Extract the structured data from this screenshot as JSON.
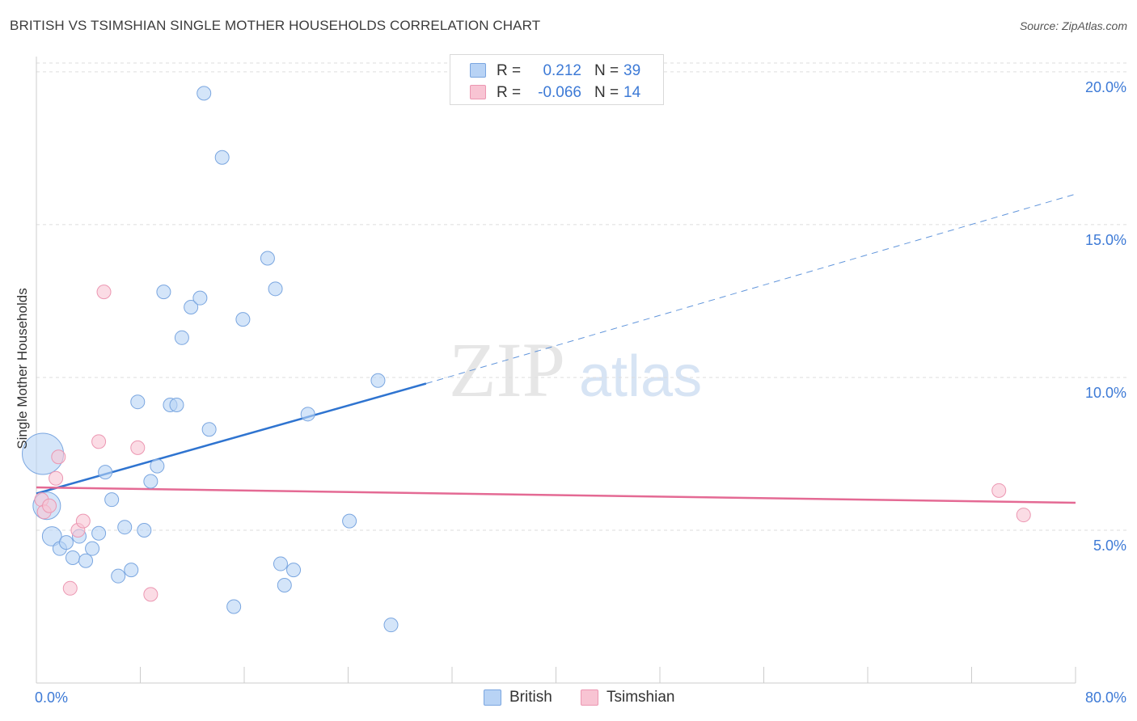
{
  "header": {
    "title": "BRITISH VS TSIMSHIAN SINGLE MOTHER HOUSEHOLDS CORRELATION CHART",
    "source": "Source: ZipAtlas.com"
  },
  "watermark": {
    "zip": "ZIP",
    "atlas": "atlas"
  },
  "colors": {
    "british_fill": "#b8d3f5",
    "british_stroke": "#7aa6e0",
    "british_line": "#2f74d0",
    "tsimshian_fill": "#f8c4d3",
    "tsimshian_stroke": "#ec97b2",
    "tsimshian_line": "#e46a94",
    "tick_label": "#3d7ad6",
    "grid": "#dddddd"
  },
  "legend": {
    "rows": [
      {
        "series": "British",
        "r_label": "R =",
        "r_value": "0.212",
        "n_label": "N =",
        "n_value": "39"
      },
      {
        "series": "Tsimshian",
        "r_label": "R =",
        "r_value": "-0.066",
        "n_label": "N =",
        "n_value": "14"
      }
    ],
    "bottom": [
      "British",
      "Tsimshian"
    ]
  },
  "chart_data": {
    "type": "scatter",
    "title": "BRITISH VS TSIMSHIAN SINGLE MOTHER HOUSEHOLDS CORRELATION CHART",
    "xlabel": "",
    "ylabel": "Single Mother Households",
    "xlim": [
      0,
      80
    ],
    "ylim": [
      0,
      20.5
    ],
    "x_tick_labels": [
      "0.0%",
      "80.0%"
    ],
    "y_ticks": [
      5,
      10,
      15,
      20
    ],
    "y_tick_labels": [
      "5.0%",
      "10.0%",
      "15.0%",
      "20.0%"
    ],
    "series": [
      {
        "name": "British",
        "r": 0.212,
        "n": 39,
        "trend": {
          "x0": 0,
          "y0": 6.2,
          "x1": 30,
          "y1": 9.8,
          "dash_to_x": 80,
          "dash_to_y": 16.0
        },
        "points": [
          {
            "x": 0.5,
            "y": 7.5,
            "s": 3
          },
          {
            "x": 0.8,
            "y": 5.8,
            "s": 2
          },
          {
            "x": 1.2,
            "y": 4.8,
            "s": 1.4
          },
          {
            "x": 1.8,
            "y": 4.4,
            "s": 1
          },
          {
            "x": 2.3,
            "y": 4.6,
            "s": 1
          },
          {
            "x": 2.8,
            "y": 4.1,
            "s": 1
          },
          {
            "x": 3.3,
            "y": 4.8,
            "s": 1
          },
          {
            "x": 3.8,
            "y": 4.0,
            "s": 1
          },
          {
            "x": 4.3,
            "y": 4.4,
            "s": 1
          },
          {
            "x": 4.8,
            "y": 4.9,
            "s": 1
          },
          {
            "x": 5.3,
            "y": 6.9,
            "s": 1
          },
          {
            "x": 5.8,
            "y": 6.0,
            "s": 1
          },
          {
            "x": 6.3,
            "y": 3.5,
            "s": 1
          },
          {
            "x": 6.8,
            "y": 5.1,
            "s": 1
          },
          {
            "x": 7.3,
            "y": 3.7,
            "s": 1
          },
          {
            "x": 7.8,
            "y": 9.2,
            "s": 1
          },
          {
            "x": 8.3,
            "y": 5.0,
            "s": 1
          },
          {
            "x": 8.8,
            "y": 6.6,
            "s": 1
          },
          {
            "x": 9.3,
            "y": 7.1,
            "s": 1
          },
          {
            "x": 9.8,
            "y": 12.8,
            "s": 1
          },
          {
            "x": 10.3,
            "y": 9.1,
            "s": 1
          },
          {
            "x": 10.8,
            "y": 9.1,
            "s": 1
          },
          {
            "x": 11.2,
            "y": 11.3,
            "s": 1
          },
          {
            "x": 11.9,
            "y": 12.3,
            "s": 1
          },
          {
            "x": 12.6,
            "y": 12.6,
            "s": 1
          },
          {
            "x": 12.9,
            "y": 19.3,
            "s": 1
          },
          {
            "x": 13.3,
            "y": 8.3,
            "s": 1
          },
          {
            "x": 14.3,
            "y": 17.2,
            "s": 1
          },
          {
            "x": 15.2,
            "y": 2.5,
            "s": 1
          },
          {
            "x": 15.9,
            "y": 11.9,
            "s": 1
          },
          {
            "x": 17.8,
            "y": 13.9,
            "s": 1
          },
          {
            "x": 18.4,
            "y": 12.9,
            "s": 1
          },
          {
            "x": 18.8,
            "y": 3.9,
            "s": 1
          },
          {
            "x": 19.1,
            "y": 3.2,
            "s": 1
          },
          {
            "x": 19.8,
            "y": 3.7,
            "s": 1
          },
          {
            "x": 20.9,
            "y": 8.8,
            "s": 1
          },
          {
            "x": 24.1,
            "y": 5.3,
            "s": 1
          },
          {
            "x": 26.3,
            "y": 9.9,
            "s": 1
          },
          {
            "x": 27.3,
            "y": 1.9,
            "s": 1
          }
        ]
      },
      {
        "name": "Tsimshian",
        "r": -0.066,
        "n": 14,
        "trend": {
          "x0": 0,
          "y0": 6.4,
          "x1": 80,
          "y1": 5.9
        },
        "points": [
          {
            "x": 0.4,
            "y": 6.0,
            "s": 1
          },
          {
            "x": 0.6,
            "y": 5.6,
            "s": 1
          },
          {
            "x": 1.0,
            "y": 5.8,
            "s": 1
          },
          {
            "x": 1.5,
            "y": 6.7,
            "s": 1
          },
          {
            "x": 1.7,
            "y": 7.4,
            "s": 1
          },
          {
            "x": 2.6,
            "y": 3.1,
            "s": 1
          },
          {
            "x": 3.2,
            "y": 5.0,
            "s": 1
          },
          {
            "x": 3.6,
            "y": 5.3,
            "s": 1
          },
          {
            "x": 4.8,
            "y": 7.9,
            "s": 1
          },
          {
            "x": 5.2,
            "y": 12.8,
            "s": 1
          },
          {
            "x": 7.8,
            "y": 7.7,
            "s": 1
          },
          {
            "x": 8.8,
            "y": 2.9,
            "s": 1
          },
          {
            "x": 74.1,
            "y": 6.3,
            "s": 1
          },
          {
            "x": 76.0,
            "y": 5.5,
            "s": 1
          }
        ]
      }
    ]
  }
}
